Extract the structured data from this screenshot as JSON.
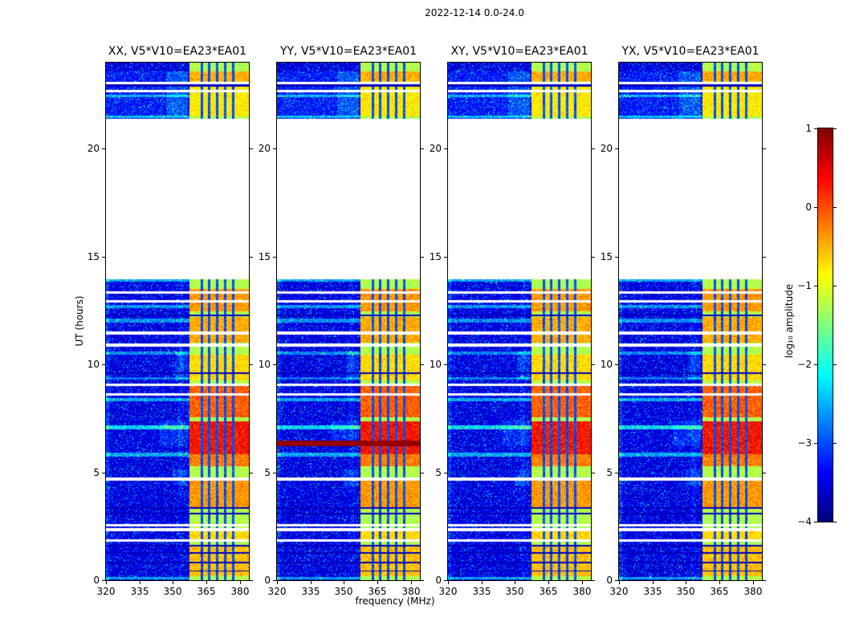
{
  "chart_data": {
    "type": "heatmap",
    "title": "2022-12-14 0.0-24.0",
    "panels": [
      {
        "label": "XX, V5*V10=EA23*EA01"
      },
      {
        "label": "YY, V5*V10=EA23*EA01",
        "full_band_burst": {
          "t0": 6.22,
          "t1": 6.48,
          "value": 0.88
        }
      },
      {
        "label": "XY, V5*V10=EA23*EA01"
      },
      {
        "label": "YX, V5*V10=EA23*EA01"
      }
    ],
    "x_axis": {
      "label": "frequency (MHz)",
      "min": 320,
      "max": 384,
      "ticks": [
        320,
        335,
        350,
        365,
        380
      ]
    },
    "y_axis": {
      "label": "UT (hours)",
      "min": 0,
      "max": 24,
      "ticks": [
        0,
        5,
        10,
        15,
        20
      ]
    },
    "colorbar": {
      "label": "log₁₀ amplitude",
      "min": -4,
      "max": 1,
      "ticks": [
        1,
        0,
        -1,
        -2,
        -3,
        -4
      ],
      "tick_labels": [
        "1",
        "0",
        "−1",
        "−2",
        "−3",
        "−4"
      ]
    },
    "colormap": "jet",
    "background_level": -3.6,
    "data_gaps": [
      [
        13.95,
        21.4
      ]
    ],
    "white_stripes": [
      [
        1.78,
        1.9
      ],
      [
        2.28,
        2.4
      ],
      [
        2.5,
        2.62
      ],
      [
        4.62,
        4.77
      ],
      [
        8.55,
        8.68
      ],
      [
        9.02,
        9.13
      ],
      [
        10.84,
        10.97
      ],
      [
        11.4,
        11.52
      ],
      [
        12.88,
        12.99
      ],
      [
        13.28,
        13.4
      ],
      [
        22.62,
        22.74
      ],
      [
        23.0,
        23.12
      ]
    ],
    "bright_rows": [
      [
        0.02,
        0.14,
        1.1
      ],
      [
        5.72,
        5.9,
        1.1
      ],
      [
        6.98,
        7.18,
        1.4
      ],
      [
        8.28,
        8.45,
        1.1
      ],
      [
        9.3,
        9.42,
        0.8
      ],
      [
        10.45,
        10.6,
        0.9
      ],
      [
        11.95,
        12.12,
        0.95
      ],
      [
        12.62,
        12.78,
        1.0
      ],
      [
        13.84,
        13.95,
        1.1
      ],
      [
        21.42,
        21.54,
        1.0
      ],
      [
        22.4,
        22.52,
        0.9
      ]
    ],
    "dark_rows": [
      [
        0.4,
        0.46
      ],
      [
        0.78,
        0.86
      ],
      [
        1.22,
        1.3
      ],
      [
        1.55,
        1.62
      ],
      [
        3.06,
        3.14
      ],
      [
        3.32,
        3.4
      ],
      [
        9.55,
        9.63
      ],
      [
        12.25,
        12.33
      ],
      [
        22.9,
        22.98
      ]
    ],
    "rfi_band": {
      "f_start": 357.5,
      "f_end": 384,
      "base_level": -1.25,
      "stripe_freqs": [
        362.8,
        366.2,
        369.8,
        373.4,
        377.0
      ],
      "stripe_width": 0.55,
      "stripe_level": -3.0
    },
    "bursts": [
      [
        0.2,
        1.62,
        0.75
      ],
      [
        1.9,
        2.28,
        0.6
      ],
      [
        3.3,
        4.6,
        0.95
      ],
      [
        5.3,
        5.85,
        1.1
      ],
      [
        5.85,
        7.38,
        1.7
      ],
      [
        7.55,
        9.0,
        1.25
      ],
      [
        9.25,
        10.45,
        0.6
      ],
      [
        11.0,
        12.2,
        0.85
      ],
      [
        12.45,
        13.5,
        0.95
      ],
      [
        21.5,
        23.6,
        0.5
      ],
      [
        23.15,
        23.58,
        0.85
      ]
    ],
    "mid_streaks": [
      [
        0,
        14,
        320,
        321.5,
        0.55
      ],
      [
        0,
        14,
        352.5,
        354.5,
        0.25
      ],
      [
        4.4,
        5.15,
        350,
        356.5,
        0.6
      ],
      [
        6.2,
        7.4,
        344,
        356.5,
        0.5
      ],
      [
        9.3,
        10.6,
        351,
        356.5,
        0.5
      ],
      [
        21.4,
        23.6,
        320,
        356.5,
        0.35
      ],
      [
        21.5,
        23.6,
        347,
        356.5,
        0.5
      ]
    ]
  }
}
